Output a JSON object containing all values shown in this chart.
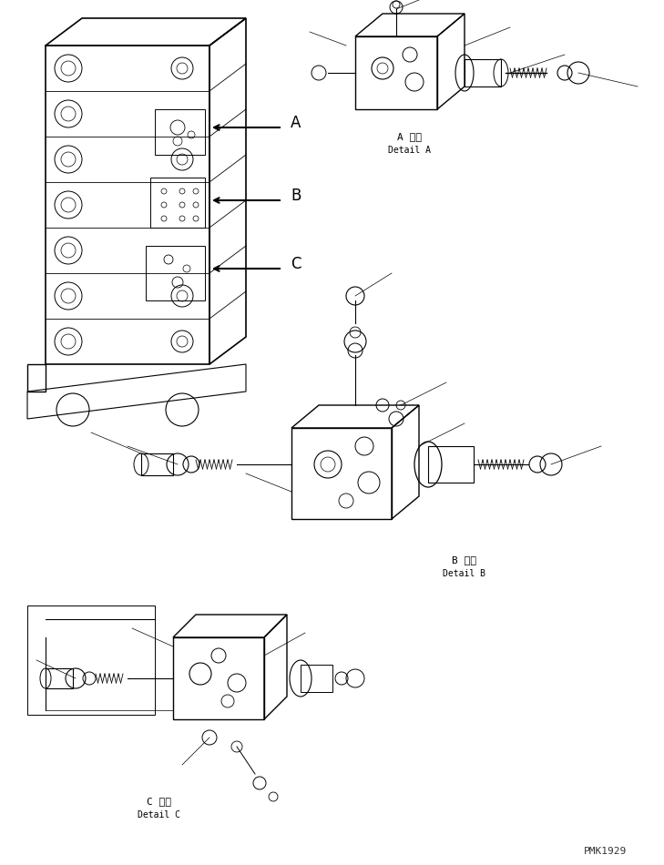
{
  "bg_color": "#ffffff",
  "line_color": "#000000",
  "title_text": "",
  "label_A_japanese": "A 詳細",
  "label_A_english": "Detail A",
  "label_B_japanese": "B 詳細",
  "label_B_english": "Detail B",
  "label_C_japanese": "C 詳細",
  "label_C_english": "Detail C",
  "watermark": "PMK1929",
  "arrow_A_label": "A",
  "arrow_B_label": "B",
  "arrow_C_label": "C",
  "fig_width": 7.29,
  "fig_height": 9.5,
  "dpi": 100
}
